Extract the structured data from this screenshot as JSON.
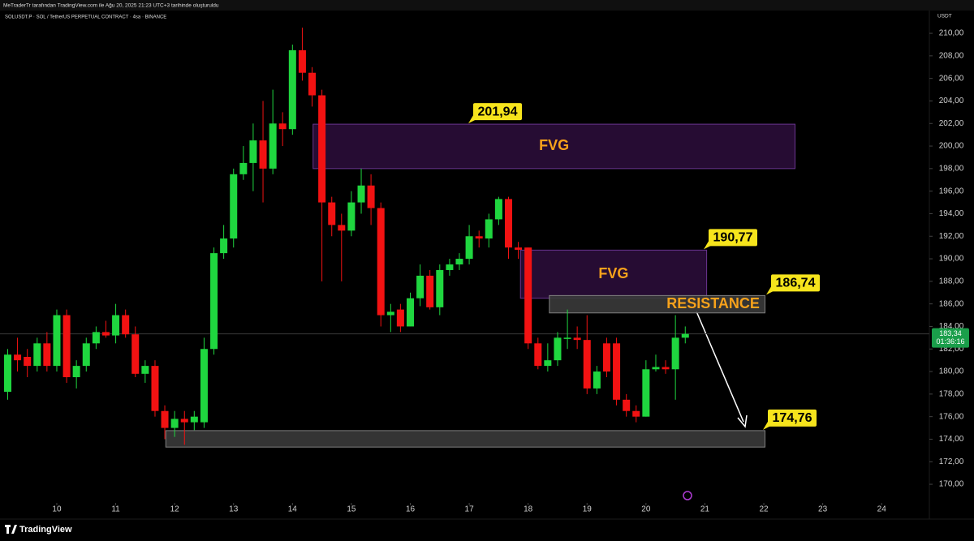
{
  "header": {
    "credit": "MeTraderTr tarafından TradingView.com ile Ağu 20, 2025 21:23 UTC+3 tarihinde oluşturuldu",
    "brand": "TradingView"
  },
  "chart_data": {
    "type": "candlestick",
    "title": "SOLUSDT.P · SOL / TetherUS PERPETUAL CONTRACT · 4sa · BINANCE",
    "currency": "USDT",
    "up_color": "#1fd63f",
    "down_color": "#f21212",
    "x": [
      9.167,
      9.333,
      9.5,
      9.667,
      9.833,
      10,
      10.167,
      10.333,
      10.5,
      10.667,
      10.833,
      11,
      11.167,
      11.333,
      11.5,
      11.667,
      11.833,
      12,
      12.167,
      12.333,
      12.5,
      12.667,
      12.833,
      13,
      13.167,
      13.333,
      13.5,
      13.667,
      13.833,
      14,
      14.167,
      14.333,
      14.5,
      14.667,
      14.833,
      15,
      15.167,
      15.333,
      15.5,
      15.667,
      15.833,
      16,
      16.167,
      16.333,
      16.5,
      16.667,
      16.833,
      17,
      17.167,
      17.333,
      17.5,
      17.667,
      17.833,
      18,
      18.167,
      18.333,
      18.5,
      18.667,
      18.833,
      19,
      19.167,
      19.333,
      19.5,
      19.667,
      19.833,
      20,
      20.167,
      20.333,
      20.5,
      20.667
    ],
    "open": [
      178.2,
      181.5,
      181.3,
      180.5,
      182.5,
      180.5,
      185,
      179.5,
      180.5,
      182.5,
      183.5,
      183.2,
      185,
      183.3,
      179.8,
      180.5,
      176.5,
      175,
      175.8,
      175.5,
      175.5,
      182,
      190.5,
      191.8,
      197.5,
      198.5,
      200.5,
      198,
      202,
      201.5,
      208.5,
      206.5,
      204.5,
      195,
      193,
      192.5,
      195,
      196.5,
      194.5,
      185,
      185.5,
      184,
      186.5,
      188.5,
      185.7,
      189,
      189.5,
      190,
      192,
      191.8,
      193.5,
      195.3,
      191,
      191,
      182.5,
      180.5,
      181,
      183,
      183,
      182.8,
      178.5,
      182.5,
      182.5,
      177.5,
      176.5,
      176,
      180.2,
      180.4,
      180.2,
      183
    ],
    "high": [
      182,
      183,
      182,
      183,
      183.5,
      185.5,
      185.5,
      181,
      183,
      184,
      184.5,
      186,
      185.5,
      184,
      181,
      181,
      177,
      176.5,
      176.5,
      176.5,
      183,
      191,
      193,
      198,
      200,
      202,
      204,
      205,
      203,
      209,
      210.5,
      207,
      205,
      195.5,
      194,
      196,
      198,
      197.5,
      195,
      186,
      186,
      187,
      189.5,
      189,
      189.5,
      190,
      190.5,
      193,
      192.5,
      194,
      195.5,
      195.5,
      191.5,
      191,
      183,
      182.5,
      183.5,
      185.5,
      184,
      185,
      180.5,
      183,
      183,
      178,
      177,
      181,
      181.5,
      181,
      185,
      184
    ],
    "low": [
      177.5,
      180,
      179.5,
      180,
      180,
      180,
      179,
      178.5,
      180,
      182,
      183,
      182.5,
      183,
      179.5,
      179,
      176,
      174,
      174.2,
      173.5,
      174.8,
      175,
      181.5,
      190,
      191,
      197,
      196,
      195,
      197.5,
      200,
      201,
      205.8,
      203.5,
      188,
      192,
      188,
      192,
      194,
      193,
      184,
      183.5,
      183.5,
      184,
      185.8,
      185.5,
      185,
      188.5,
      189,
      189.5,
      191,
      191,
      193,
      190,
      190,
      182,
      180.2,
      180,
      180.5,
      182,
      182,
      178,
      178,
      179.5,
      177,
      176,
      175.5,
      176,
      180,
      179.8,
      177.5,
      182.5
    ],
    "close": [
      181.5,
      181,
      180.5,
      182.5,
      180.5,
      185,
      179.5,
      180.5,
      182.5,
      183.5,
      183.2,
      185,
      183.3,
      179.8,
      180.5,
      176.5,
      175,
      175.8,
      175.5,
      176,
      182,
      190.5,
      191.8,
      197.5,
      198.5,
      200.5,
      198,
      202,
      201.5,
      208.5,
      206.5,
      204.5,
      195,
      193,
      192.5,
      195,
      196.5,
      194.5,
      185,
      185.3,
      184,
      186.5,
      188.5,
      185.7,
      189,
      189.5,
      190,
      192,
      191.8,
      193.5,
      195.3,
      191,
      190.8,
      182.5,
      180.5,
      181,
      183,
      183,
      182.8,
      178.5,
      180,
      180,
      177.5,
      176.5,
      176,
      180.2,
      180.4,
      180.2,
      183,
      183.34
    ],
    "xlim": [
      9.036,
      24.81
    ],
    "xticks": [
      10,
      11,
      12,
      13,
      14,
      15,
      16,
      17,
      18,
      19,
      20,
      21,
      22,
      23,
      24
    ],
    "ylim": [
      168.35,
      210.94
    ],
    "yticks": [
      {
        "value": 170,
        "label": "170,00"
      },
      {
        "value": 172,
        "label": "172,00"
      },
      {
        "value": 174,
        "label": "174,00"
      },
      {
        "value": 176,
        "label": "176,00"
      },
      {
        "value": 178,
        "label": "178,00"
      },
      {
        "value": 180,
        "label": "180,00"
      },
      {
        "value": 182,
        "label": "182,00"
      },
      {
        "value": 184,
        "label": "184,00"
      },
      {
        "value": 186,
        "label": "186,00"
      },
      {
        "value": 188,
        "label": "188,00"
      },
      {
        "value": 190,
        "label": "190,00"
      },
      {
        "value": 192,
        "label": "192,00"
      },
      {
        "value": 194,
        "label": "194,00"
      },
      {
        "value": 196,
        "label": "196,00"
      },
      {
        "value": 198,
        "label": "198,00"
      },
      {
        "value": 200,
        "label": "200,00"
      },
      {
        "value": 202,
        "label": "202,00"
      },
      {
        "value": 204,
        "label": "204,00"
      },
      {
        "value": 206,
        "label": "206,00"
      },
      {
        "value": 208,
        "label": "208,00"
      },
      {
        "value": 210,
        "label": "210,00"
      }
    ],
    "grid": false,
    "last_price": {
      "value": 183.34,
      "label": "183,34"
    },
    "countdown": "01:36:16",
    "zones": [
      {
        "text": "FVG",
        "x0": 14.35,
        "x1": 22.53,
        "low": 198,
        "high": 201.94,
        "fill": "#2a0d38",
        "stroke": "#6a3590"
      },
      {
        "text": "FVG",
        "x0": 17.87,
        "x1": 21.03,
        "low": 186.5,
        "high": 190.77,
        "fill": "#2a0d38",
        "stroke": "#6a3590"
      },
      {
        "text": "RESISTANCE",
        "x0": 18.36,
        "x1": 22.02,
        "low": 185.2,
        "high": 186.74,
        "fill": "#3a3a3a",
        "stroke": "#808080"
      },
      {
        "x0": 11.85,
        "x1": 22.02,
        "low": 173.3,
        "high": 174.76,
        "fill": "#3a3a3a",
        "stroke": "#808080"
      }
    ],
    "price_labels": [
      {
        "value": 201.94,
        "label": "201,94"
      },
      {
        "value": 190.77,
        "label": "190,77"
      },
      {
        "value": 186.74,
        "label": "186,74"
      },
      {
        "value": 174.76,
        "label": "174,76"
      }
    ]
  }
}
